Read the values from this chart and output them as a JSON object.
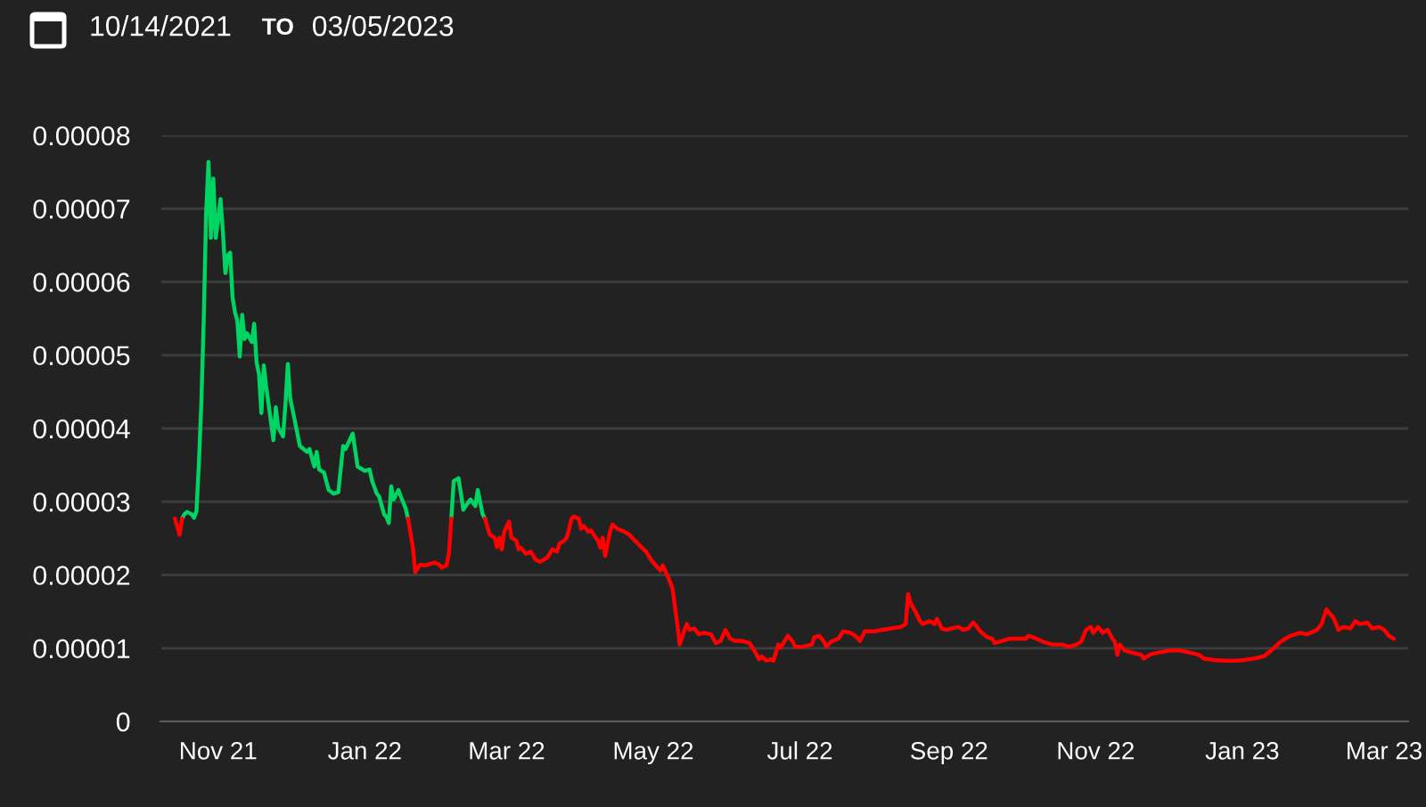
{
  "chart_data": {
    "type": "line",
    "annotations": [
      "10/14/2021",
      "TO",
      "03/05/2023"
    ],
    "xlim": [
      "2021-10-08",
      "2023-03-11"
    ],
    "xticks": [
      {
        "value": "2021-11-01",
        "label": "Nov 21"
      },
      {
        "value": "2022-01-01",
        "label": "Jan 22"
      },
      {
        "value": "2022-03-01",
        "label": "Mar 22"
      },
      {
        "value": "2022-05-01",
        "label": "May 22"
      },
      {
        "value": "2022-07-01",
        "label": "Jul 22"
      },
      {
        "value": "2022-09-01",
        "label": "Sep 22"
      },
      {
        "value": "2022-11-01",
        "label": "Nov 22"
      },
      {
        "value": "2023-01-01",
        "label": "Jan 23"
      },
      {
        "value": "2023-03-01",
        "label": "Mar 23"
      }
    ],
    "ylim": [
      0,
      8e-05
    ],
    "yticks": [
      0,
      {
        "value": 1e-05,
        "label": "0.00001"
      },
      {
        "value": 2e-05,
        "label": "0.00002"
      },
      {
        "value": 3e-05,
        "label": "0.00003"
      },
      {
        "value": 4e-05,
        "label": "0.00004"
      },
      {
        "value": 5e-05,
        "label": "0.00005"
      },
      {
        "value": 6e-05,
        "label": "0.00006"
      },
      {
        "value": 7e-05,
        "label": "0.00007"
      },
      {
        "value": 8e-05,
        "label": "0.00008"
      }
    ],
    "grid": "y",
    "line_style": "solid",
    "series": [
      {
        "color": "#00d463",
        "x": [
          "2021-10-17",
          "2021-10-18",
          "2021-10-19",
          "2021-10-21",
          "2021-10-22",
          "2021-10-23",
          "2021-10-24",
          "2021-10-25",
          "2021-10-26",
          "2021-10-27",
          "2021-10-28",
          "2021-10-29",
          "2021-10-30",
          "2021-10-31",
          "2021-11-01",
          "2021-11-02",
          "2021-11-03",
          "2021-11-04",
          "2021-11-05",
          "2021-11-06",
          "2021-11-07",
          "2021-11-08",
          "2021-11-09",
          "2021-11-10",
          "2021-11-11",
          "2021-11-12",
          "2021-11-13",
          "2021-11-15",
          "2021-11-16",
          "2021-11-17",
          "2021-11-18",
          "2021-11-19",
          "2021-11-20",
          "2021-11-21",
          "2021-11-22",
          "2021-11-24",
          "2021-11-25",
          "2021-11-26",
          "2021-11-28",
          "2021-11-29",
          "2021-11-30",
          "2021-12-01",
          "2021-12-03",
          "2021-12-05",
          "2021-12-08",
          "2021-12-09",
          "2021-12-11",
          "2021-12-12",
          "2021-12-13",
          "2021-12-15",
          "2021-12-17",
          "2021-12-19",
          "2021-12-21",
          "2021-12-23",
          "2021-12-24",
          "2021-12-27",
          "2021-12-29",
          "2022-01-01",
          "2022-01-03",
          "2022-01-04",
          "2022-01-06",
          "2022-01-07",
          "2022-01-09",
          "2022-01-10",
          "2022-01-11",
          "2022-01-12",
          "2022-01-13",
          "2022-01-15",
          "2022-01-16",
          "2022-01-18",
          "2022-01-19",
          "2022-01-21",
          "2022-02-06",
          "2022-02-07",
          "2022-02-09",
          "2022-02-10",
          "2022-02-11",
          "2022-02-13",
          "2022-02-14",
          "2022-02-16",
          "2022-02-17",
          "2022-02-19",
          "2022-02-20"
        ],
        "values": [
          2.77e-05,
          2.83e-05,
          2.86e-05,
          2.83e-05,
          2.78e-05,
          2.87e-05,
          3.52e-05,
          4.33e-05,
          5.47e-05,
          6.93e-05,
          7.64e-05,
          6.6e-05,
          7.41e-05,
          6.6e-05,
          6.85e-05,
          7.13e-05,
          6.68e-05,
          6.12e-05,
          6.36e-05,
          6.4e-05,
          5.79e-05,
          5.59e-05,
          5.47e-05,
          4.98e-05,
          5.55e-05,
          5.22e-05,
          5.3e-05,
          5.18e-05,
          5.43e-05,
          4.9e-05,
          4.74e-05,
          4.21e-05,
          4.86e-05,
          4.57e-05,
          4.33e-05,
          3.84e-05,
          4.29e-05,
          4.01e-05,
          3.89e-05,
          4.33e-05,
          4.88e-05,
          4.41e-05,
          4.09e-05,
          3.76e-05,
          3.68e-05,
          3.72e-05,
          3.48e-05,
          3.68e-05,
          3.44e-05,
          3.4e-05,
          3.16e-05,
          3.11e-05,
          3.13e-05,
          3.76e-05,
          3.72e-05,
          3.93e-05,
          3.48e-05,
          3.42e-05,
          3.44e-05,
          3.29e-05,
          3.11e-05,
          3.07e-05,
          2.83e-05,
          2.79e-05,
          2.71e-05,
          3.21e-05,
          3.03e-05,
          3.16e-05,
          3.07e-05,
          2.91e-05,
          2.77e-05,
          null,
          2.77e-05,
          3.28e-05,
          3.32e-05,
          3.11e-05,
          2.89e-05,
          2.99e-05,
          3.03e-05,
          2.94e-05,
          3.16e-05,
          2.83e-05,
          2.77e-05
        ]
      },
      {
        "color": "#ff0000",
        "x": [
          "2021-10-14",
          "2021-10-16",
          "2021-10-17",
          "2021-10-18",
          "2022-01-19",
          "2022-01-21",
          "2022-01-22",
          "2022-01-24",
          "2022-01-26",
          "2022-01-29",
          "2022-01-30",
          "2022-02-01",
          "2022-02-02",
          "2022-02-04",
          "2022-02-05",
          "2022-02-06",
          "2022-02-07",
          "2022-02-20",
          "2022-02-22",
          "2022-02-24",
          "2022-02-25",
          "2022-02-26",
          "2022-02-27",
          "2022-02-28",
          "2022-03-02",
          "2022-03-03",
          "2022-03-05",
          "2022-03-06",
          "2022-03-07",
          "2022-03-09",
          "2022-03-11",
          "2022-03-13",
          "2022-03-15",
          "2022-03-17",
          "2022-03-18",
          "2022-03-20",
          "2022-03-22",
          "2022-03-23",
          "2022-03-25",
          "2022-03-26",
          "2022-03-27",
          "2022-03-28",
          "2022-03-29",
          "2022-03-30",
          "2022-03-31",
          "2022-04-01",
          "2022-04-02",
          "2022-04-04",
          "2022-04-05",
          "2022-04-07",
          "2022-04-08",
          "2022-04-09",
          "2022-04-10",
          "2022-04-11",
          "2022-04-13",
          "2022-04-14",
          "2022-04-16",
          "2022-04-19",
          "2022-04-21",
          "2022-04-23",
          "2022-04-24",
          "2022-04-26",
          "2022-04-28",
          "2022-04-30",
          "2022-05-02",
          "2022-05-04",
          "2022-05-05",
          "2022-05-07",
          "2022-05-09",
          "2022-05-10",
          "2022-05-11",
          "2022-05-12",
          "2022-05-14",
          "2022-05-15",
          "2022-05-16",
          "2022-05-18",
          "2022-05-20",
          "2022-05-22",
          "2022-05-25",
          "2022-05-27",
          "2022-05-29",
          "2022-05-31",
          "2022-06-02",
          "2022-06-04",
          "2022-06-07",
          "2022-06-10",
          "2022-06-12",
          "2022-06-14",
          "2022-06-15",
          "2022-06-17",
          "2022-06-19",
          "2022-06-20",
          "2022-06-22",
          "2022-06-23",
          "2022-06-26",
          "2022-06-28",
          "2022-06-29",
          "2022-07-02",
          "2022-07-06",
          "2022-07-07",
          "2022-07-09",
          "2022-07-11",
          "2022-07-12",
          "2022-07-14",
          "2022-07-17",
          "2022-07-19",
          "2022-07-22",
          "2022-07-24",
          "2022-07-26",
          "2022-07-28",
          "2022-08-01",
          "2022-08-04",
          "2022-08-08",
          "2022-08-12",
          "2022-08-14",
          "2022-08-15",
          "2022-08-16",
          "2022-08-18",
          "2022-08-20",
          "2022-08-21",
          "2022-08-24",
          "2022-08-26",
          "2022-08-27",
          "2022-08-29",
          "2022-08-31",
          "2022-09-02",
          "2022-09-05",
          "2022-09-07",
          "2022-09-09",
          "2022-09-11",
          "2022-09-12",
          "2022-09-14",
          "2022-09-17",
          "2022-09-19",
          "2022-09-20",
          "2022-09-23",
          "2022-09-26",
          "2022-09-30",
          "2022-10-03",
          "2022-10-04",
          "2022-10-06",
          "2022-10-10",
          "2022-10-14",
          "2022-10-18",
          "2022-10-21",
          "2022-10-24",
          "2022-10-26",
          "2022-10-28",
          "2022-10-30",
          "2022-10-31",
          "2022-11-02",
          "2022-11-04",
          "2022-11-06",
          "2022-11-08",
          "2022-11-09",
          "2022-11-10",
          "2022-11-11",
          "2022-11-13",
          "2022-11-16",
          "2022-11-20",
          "2022-11-21",
          "2022-11-24",
          "2022-11-27",
          "2022-12-02",
          "2022-12-06",
          "2022-12-10",
          "2022-12-14",
          "2022-12-16",
          "2022-12-20",
          "2022-12-25",
          "2022-12-29",
          "2023-01-02",
          "2023-01-06",
          "2023-01-10",
          "2023-01-13",
          "2023-01-17",
          "2023-01-21",
          "2023-01-25",
          "2023-01-28",
          "2023-02-01",
          "2023-02-03",
          "2023-02-05",
          "2023-02-07",
          "2023-02-08",
          "2023-02-10",
          "2023-02-12",
          "2023-02-15",
          "2023-02-17",
          "2023-02-19",
          "2023-02-22",
          "2023-02-24",
          "2023-02-27",
          "2023-03-01",
          "2023-03-03",
          "2023-03-05"
        ],
        "values": [
          2.77e-05,
          2.55e-05,
          2.77e-05,
          null,
          2.77e-05,
          2.38e-05,
          2.04e-05,
          2.14e-05,
          2.13e-05,
          2.16e-05,
          2.17e-05,
          2.14e-05,
          2.1e-05,
          2.13e-05,
          2.3e-05,
          2.77e-05,
          null,
          2.77e-05,
          2.55e-05,
          2.51e-05,
          2.38e-05,
          2.51e-05,
          2.35e-05,
          2.59e-05,
          2.73e-05,
          2.51e-05,
          2.47e-05,
          2.35e-05,
          2.37e-05,
          2.29e-05,
          2.32e-05,
          2.21e-05,
          2.18e-05,
          2.22e-05,
          2.24e-05,
          2.35e-05,
          2.32e-05,
          2.43e-05,
          2.47e-05,
          2.51e-05,
          2.63e-05,
          2.77e-05,
          2.8e-05,
          2.78e-05,
          2.77e-05,
          2.63e-05,
          2.67e-05,
          2.59e-05,
          2.61e-05,
          2.51e-05,
          2.47e-05,
          2.37e-05,
          2.51e-05,
          2.26e-05,
          2.59e-05,
          2.69e-05,
          2.63e-05,
          2.59e-05,
          2.55e-05,
          2.48e-05,
          2.45e-05,
          2.38e-05,
          2.32e-05,
          2.21e-05,
          2.13e-05,
          2.06e-05,
          2.13e-05,
          1.98e-05,
          1.82e-05,
          1.57e-05,
          1.33e-05,
          1.05e-05,
          1.25e-05,
          1.33e-05,
          1.25e-05,
          1.27e-05,
          1.19e-05,
          1.21e-05,
          1.19e-05,
          1.07e-05,
          1.1e-05,
          1.25e-05,
          1.13e-05,
          1.1e-05,
          1.1e-05,
          1.07e-05,
          9.7e-06,
          8.5e-06,
          8.9e-06,
          8.3e-06,
          8.5e-06,
          8.3e-06,
          1.05e-05,
          1.01e-05,
          1.17e-05,
          1.09e-05,
          1.02e-05,
          1.02e-05,
          1.05e-05,
          1.15e-05,
          1.17e-05,
          1.09e-05,
          1.02e-05,
          1.09e-05,
          1.13e-05,
          1.23e-05,
          1.21e-05,
          1.17e-05,
          1.1e-05,
          1.23e-05,
          1.23e-05,
          1.25e-05,
          1.27e-05,
          1.29e-05,
          1.33e-05,
          1.74e-05,
          1.62e-05,
          1.5e-05,
          1.37e-05,
          1.33e-05,
          1.37e-05,
          1.33e-05,
          1.4e-05,
          1.27e-05,
          1.25e-05,
          1.27e-05,
          1.29e-05,
          1.25e-05,
          1.27e-05,
          1.35e-05,
          1.32e-05,
          1.23e-05,
          1.15e-05,
          1.13e-05,
          1.07e-05,
          1.1e-05,
          1.13e-05,
          1.13e-05,
          1.13e-05,
          1.17e-05,
          1.15e-05,
          1.09e-05,
          1.05e-05,
          1.05e-05,
          1.02e-05,
          1.05e-05,
          1.09e-05,
          1.25e-05,
          1.29e-05,
          1.21e-05,
          1.29e-05,
          1.21e-05,
          1.25e-05,
          1.13e-05,
          1.09e-05,
          9.1e-06,
          1.05e-05,
          9.7e-06,
          9.4e-06,
          9.1e-06,
          8.6e-06,
          9.2e-06,
          9.4e-06,
          9.7e-06,
          9.7e-06,
          9.4e-06,
          9.1e-06,
          8.6e-06,
          8.4e-06,
          8.3e-06,
          8.3e-06,
          8.4e-06,
          8.6e-06,
          8.9e-06,
          9.7e-06,
          1.09e-05,
          1.17e-05,
          1.21e-05,
          1.19e-05,
          1.25e-05,
          1.33e-05,
          1.53e-05,
          1.45e-05,
          1.41e-05,
          1.25e-05,
          1.29e-05,
          1.27e-05,
          1.37e-05,
          1.33e-05,
          1.35e-05,
          1.27e-05,
          1.29e-05,
          1.25e-05,
          1.17e-05,
          1.13e-05
        ]
      }
    ]
  }
}
